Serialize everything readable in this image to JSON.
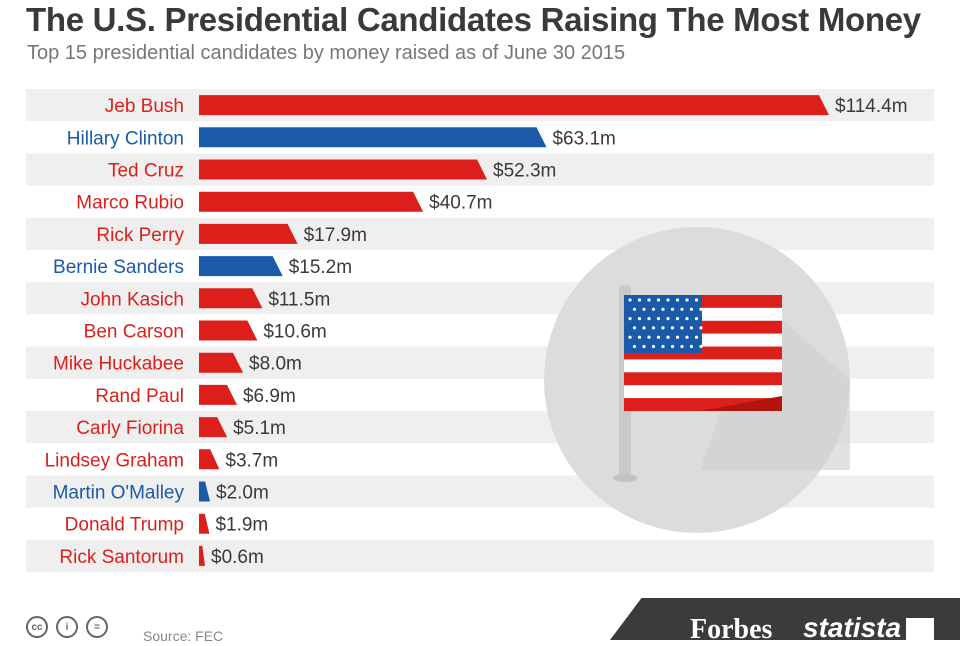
{
  "header": {
    "title": "The U.S. Presidential Candidates Raising The Most Money",
    "subtitle": "Top 15 presidential candidates by money raised as of June 30 2015"
  },
  "footer": {
    "source": "Source: FEC",
    "license_icons": [
      "cc-icon",
      "attribution-icon",
      "equals-icon"
    ],
    "brands": [
      "Forbes",
      "statista"
    ]
  },
  "colors": {
    "republican": "#dd1f1b",
    "democrat": "#1a5aa8",
    "row_shade": "#efefef",
    "circle": "#dcdcdc"
  },
  "chart_data": {
    "type": "bar",
    "orientation": "horizontal",
    "title": "The U.S. Presidential Candidates Raising The Most Money",
    "subtitle": "Top 15 presidential candidates by money raised as of June 30 2015",
    "unit": "$ millions",
    "categories": [
      "Jeb Bush",
      "Hillary Clinton",
      "Ted Cruz",
      "Marco Rubio",
      "Rick Perry",
      "Bernie Sanders",
      "John Kasich",
      "Ben Carson",
      "Mike Huckabee",
      "Rand Paul",
      "Carly Fiorina",
      "Lindsey Graham",
      "Martin O'Malley",
      "Donald Trump",
      "Rick Santorum"
    ],
    "values": [
      114.4,
      63.1,
      52.3,
      40.7,
      17.9,
      15.2,
      11.5,
      10.6,
      8.0,
      6.9,
      5.1,
      3.7,
      2.0,
      1.9,
      0.6
    ],
    "value_labels": [
      "$114.4m",
      "$63.1m",
      "$52.3m",
      "$40.7m",
      "$17.9m",
      "$15.2m",
      "$11.5m",
      "$10.6m",
      "$8.0m",
      "$6.9m",
      "$5.1m",
      "$3.7m",
      "$2.0m",
      "$1.9m",
      "$0.6m"
    ],
    "party": [
      "R",
      "D",
      "R",
      "R",
      "R",
      "D",
      "R",
      "R",
      "R",
      "R",
      "R",
      "R",
      "D",
      "R",
      "R"
    ],
    "xlim": [
      0,
      114.4
    ],
    "grid": false,
    "legend": "none"
  }
}
